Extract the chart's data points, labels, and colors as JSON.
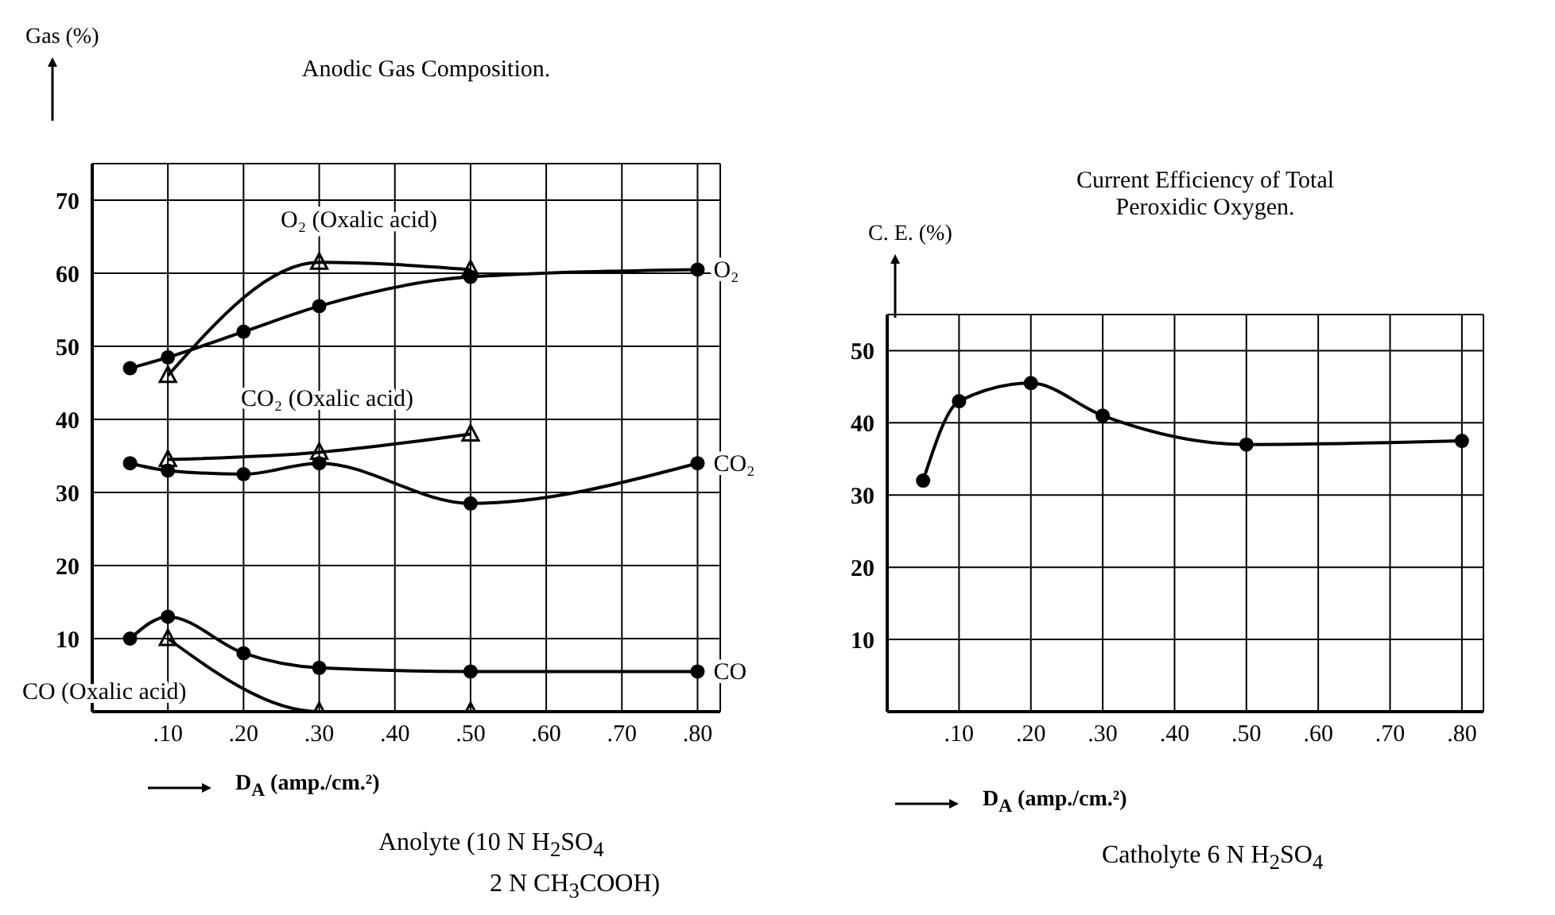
{
  "chart_data": [
    {
      "type": "line",
      "title": "Anodic Gas Composition.",
      "xlabel": "D$_{A}$ (amp./cm.²)",
      "ylabel": "Gas (%)",
      "xlim": [
        0,
        0.83
      ],
      "ylim": [
        0,
        75
      ],
      "xticks": [
        {
          "value": 0.1,
          "label": ".10"
        },
        {
          "value": 0.2,
          "label": ".20"
        },
        {
          "value": 0.3,
          "label": ".30"
        },
        {
          "value": 0.4,
          "label": ".40"
        },
        {
          "value": 0.5,
          "label": ".50"
        },
        {
          "value": 0.6,
          "label": ".60"
        },
        {
          "value": 0.7,
          "label": ".70"
        },
        {
          "value": 0.8,
          "label": ".80"
        }
      ],
      "yticks": [
        10,
        20,
        30,
        40,
        50,
        60,
        70
      ],
      "grid": true,
      "series": [
        {
          "name": "O₂",
          "color": "#000000",
          "marker": "circle",
          "x": [
            0.05,
            0.1,
            0.2,
            0.3,
            0.5,
            0.8
          ],
          "values": [
            47,
            48.5,
            52,
            55.5,
            59.5,
            60.5
          ]
        },
        {
          "name": "O₂ (Oxalic acid)",
          "color": "#000000",
          "marker": "triangle",
          "x": [
            0.1,
            0.3,
            0.5
          ],
          "values": [
            46,
            61.5,
            60.5
          ]
        },
        {
          "name": "CO₂ (Oxalic acid)",
          "color": "#000000",
          "marker": "triangle",
          "x": [
            0.1,
            0.3,
            0.5
          ],
          "values": [
            34.5,
            35.5,
            38
          ]
        },
        {
          "name": "CO₂",
          "color": "#000000",
          "marker": "circle",
          "x": [
            0.05,
            0.1,
            0.2,
            0.3,
            0.5,
            0.8
          ],
          "values": [
            34,
            33,
            32.5,
            34,
            28.5,
            34
          ]
        },
        {
          "name": "CO",
          "color": "#000000",
          "marker": "circle",
          "x": [
            0.05,
            0.1,
            0.2,
            0.3,
            0.5,
            0.8
          ],
          "values": [
            10,
            13,
            8,
            6,
            5.5,
            5.5
          ]
        },
        {
          "name": "CO (Oxalic acid)",
          "color": "#000000",
          "marker": "triangle",
          "x": [
            0.1,
            0.3,
            0.5
          ],
          "values": [
            10,
            0,
            0
          ]
        }
      ],
      "annotations": [
        "Anolyte (10 N H$_{2}$SO$_{4}$\n2 N CH$_{3}$COOH)"
      ]
    },
    {
      "type": "line",
      "title": "Current Efficiency of Total Peroxidic Oxygen.",
      "xlabel": "D$_{A}$ (amp./cm.²)",
      "ylabel": "C. E. (%)",
      "xlim": [
        0,
        0.83
      ],
      "ylim": [
        0,
        55
      ],
      "xticks": [
        {
          "value": 0.1,
          "label": ".10"
        },
        {
          "value": 0.2,
          "label": ".20"
        },
        {
          "value": 0.3,
          "label": ".30"
        },
        {
          "value": 0.4,
          "label": ".40"
        },
        {
          "value": 0.5,
          "label": ".50"
        },
        {
          "value": 0.6,
          "label": ".60"
        },
        {
          "value": 0.7,
          "label": ".70"
        },
        {
          "value": 0.8,
          "label": ".80"
        }
      ],
      "yticks": [
        10,
        20,
        30,
        40,
        50
      ],
      "grid": true,
      "series": [
        {
          "color": "#000000",
          "marker": "circle",
          "x": [
            0.05,
            0.1,
            0.2,
            0.3,
            0.5,
            0.8
          ],
          "values": [
            32,
            43,
            45.5,
            41,
            37,
            37.5
          ]
        }
      ],
      "annotations": [
        "Catholyte 6 N H$_{2}$SO$_{4}$"
      ]
    }
  ]
}
